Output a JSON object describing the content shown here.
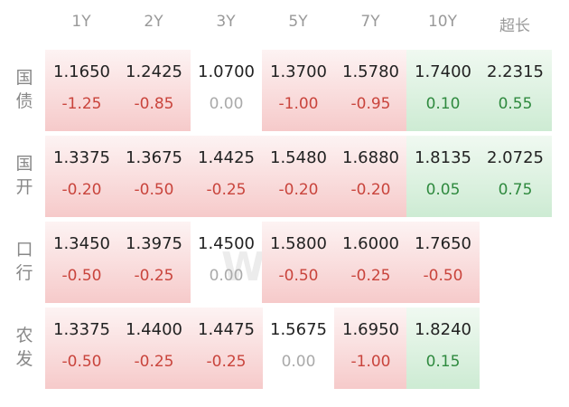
{
  "header": {
    "columns": [
      "1Y",
      "2Y",
      "3Y",
      "5Y",
      "7Y",
      "10Y",
      "超长"
    ]
  },
  "watermark": "Wind",
  "table": {
    "rows": [
      {
        "label": "国债",
        "cells": [
          {
            "yield": "1.1650",
            "change": "-1.25"
          },
          {
            "yield": "1.2425",
            "change": "-0.85"
          },
          {
            "yield": "1.0700",
            "change": "0.00"
          },
          {
            "yield": "1.3700",
            "change": "-1.00"
          },
          {
            "yield": "1.5780",
            "change": "-0.95"
          },
          {
            "yield": "1.7400",
            "change": "0.10"
          },
          {
            "yield": "2.2315",
            "change": "0.55"
          }
        ]
      },
      {
        "label": "国开",
        "cells": [
          {
            "yield": "1.3375",
            "change": "-0.20"
          },
          {
            "yield": "1.3675",
            "change": "-0.50"
          },
          {
            "yield": "1.4425",
            "change": "-0.25"
          },
          {
            "yield": "1.5480",
            "change": "-0.20"
          },
          {
            "yield": "1.6880",
            "change": "-0.20"
          },
          {
            "yield": "1.8135",
            "change": "0.05"
          },
          {
            "yield": "2.0725",
            "change": "0.75"
          }
        ]
      },
      {
        "label": "口行",
        "cells": [
          {
            "yield": "1.3450",
            "change": "-0.50"
          },
          {
            "yield": "1.3975",
            "change": "-0.25"
          },
          {
            "yield": "1.4500",
            "change": "0.00"
          },
          {
            "yield": "1.5800",
            "change": "-0.50"
          },
          {
            "yield": "1.6000",
            "change": "-0.25"
          },
          {
            "yield": "1.7650",
            "change": "-0.50"
          },
          null
        ]
      },
      {
        "label": "农发",
        "cells": [
          {
            "yield": "1.3375",
            "change": "-0.50"
          },
          {
            "yield": "1.4400",
            "change": "-0.25"
          },
          {
            "yield": "1.4475",
            "change": "-0.25"
          },
          {
            "yield": "1.5675",
            "change": "0.00"
          },
          {
            "yield": "1.6950",
            "change": "-1.00"
          },
          {
            "yield": "1.8240",
            "change": "0.15"
          },
          null
        ]
      }
    ]
  }
}
